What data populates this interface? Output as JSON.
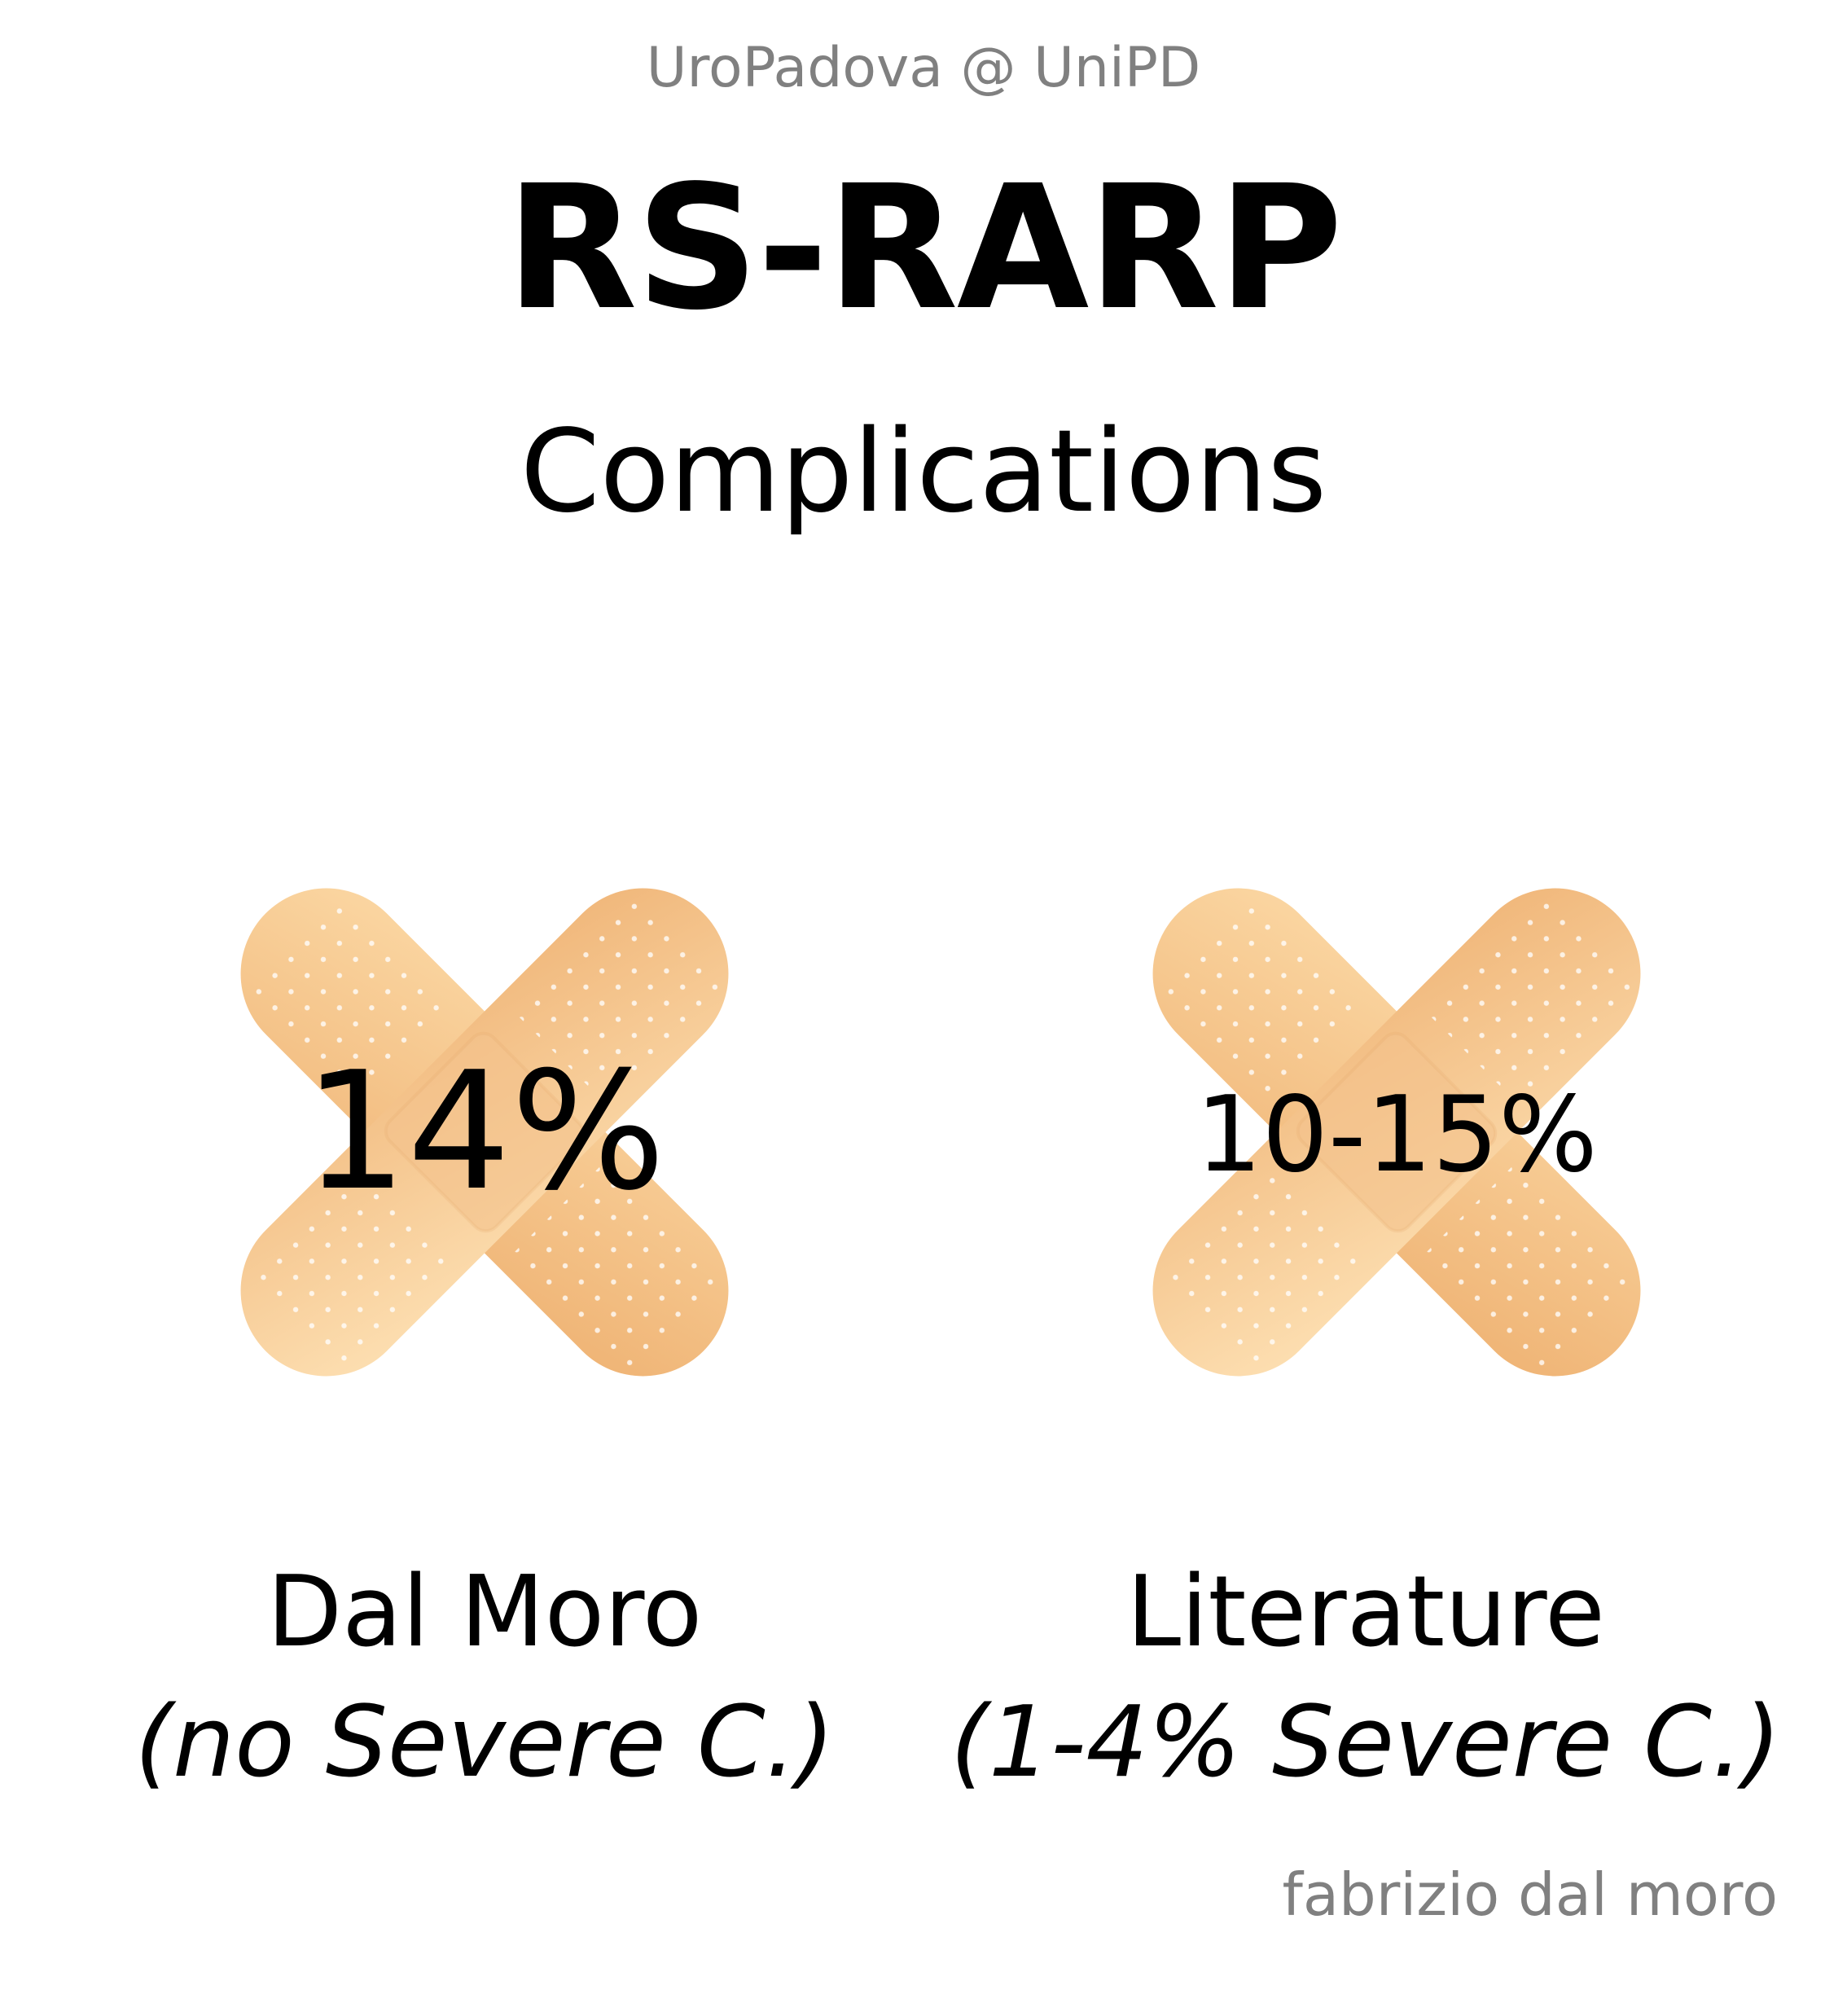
{
  "header": {
    "org": "UroPadova @ UniPD"
  },
  "title": {
    "main": "RS-RARP",
    "sub": "Complications"
  },
  "panels": [
    {
      "icon": "bandage-cross-icon",
      "value": "14%",
      "label": "Dal Moro",
      "note": "(no Severe C.)"
    },
    {
      "icon": "bandage-cross-icon",
      "value": "10-15%",
      "label": "Literature",
      "note": "(1-4% Severe C.)"
    }
  ],
  "footer": {
    "author": "fabrizio dal moro"
  },
  "colors": {
    "bandage_light": "#fbd9a6",
    "bandage_dark": "#f1b77a",
    "title_text": "#000000",
    "muted_text": "#808080"
  }
}
